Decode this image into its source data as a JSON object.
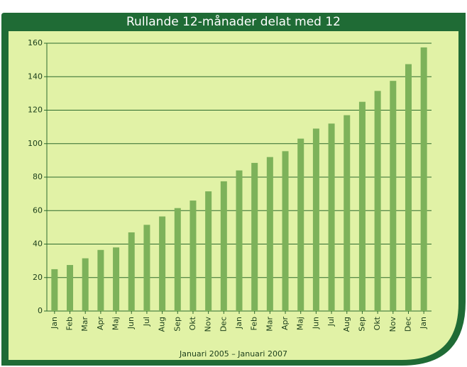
{
  "chart_data": {
    "type": "bar",
    "title": "Rullande 12-månader delat med 12",
    "xlabel": "Januari 2005 – Januari 2007",
    "categories": [
      "Jan",
      "Feb",
      "Mar",
      "Apr",
      "Maj",
      "Jun",
      "Jul",
      "Aug",
      "Sep",
      "Okt",
      "Nov",
      "Dec",
      "Jan",
      "Feb",
      "Mar",
      "Apr",
      "Maj",
      "Jun",
      "Jul",
      "Aug",
      "Sep",
      "Okt",
      "Nov",
      "Dec",
      "Jan"
    ],
    "values": [
      25,
      27.5,
      31.5,
      36.5,
      38,
      47,
      51.5,
      56.5,
      61.5,
      66,
      71.5,
      77.5,
      84,
      88.5,
      92,
      95.5,
      103,
      109,
      112,
      117,
      125,
      131.5,
      137.5,
      147.5,
      157.5
    ],
    "color": "#7db25a",
    "ylim": [
      0,
      160
    ],
    "yticks": [
      0,
      20,
      40,
      60,
      80,
      100,
      120,
      140,
      160
    ],
    "grid": true
  }
}
